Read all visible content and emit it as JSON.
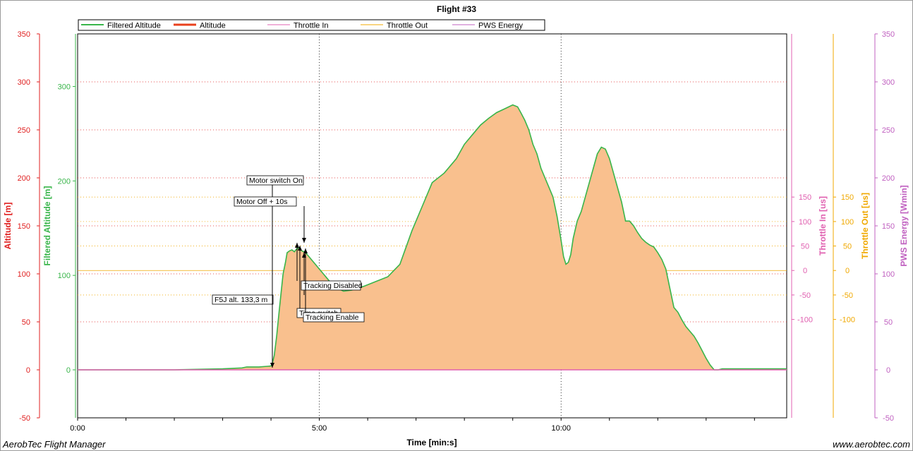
{
  "chart_data": {
    "type": "area",
    "title": "Flight #33",
    "xlabel": "Time [min:s]",
    "x_ticks": [
      "0:00",
      "5:00",
      "10:00"
    ],
    "xlim_seconds": [
      0,
      880
    ],
    "legend": [
      {
        "name": "Filtered Altitude",
        "color": "#39b54a"
      },
      {
        "name": "Altitude",
        "color": "#e8401c"
      },
      {
        "name": "Throttle In",
        "color": "#e060b0"
      },
      {
        "name": "Throttle Out",
        "color": "#f0a800"
      },
      {
        "name": "PWS Energy",
        "color": "#c060c0"
      }
    ],
    "axes": {
      "altitude": {
        "label": "Altitude [m]",
        "ticks": [
          -50,
          0,
          50,
          100,
          150,
          200,
          250,
          300,
          350
        ],
        "range": [
          -50,
          350
        ],
        "color": "#e02020"
      },
      "filtered_altitude": {
        "label": "Filtered Altitude [m]",
        "ticks": [
          0,
          100,
          200,
          300
        ],
        "color": "#39b54a"
      },
      "throttle_in": {
        "label": "Throttle In [us]",
        "ticks": [
          -100,
          -50,
          0,
          50,
          100,
          150
        ],
        "color": "#e060b0"
      },
      "throttle_out": {
        "label": "Throttle Out [us]",
        "ticks": [
          -100,
          -50,
          0,
          50,
          100,
          150
        ],
        "color": "#f0a800"
      },
      "pws_energy": {
        "label": "PWS Energy [Wmin]",
        "ticks": [
          -50,
          0,
          50,
          100,
          150,
          200,
          250,
          300,
          350
        ],
        "color": "#c060c0"
      }
    },
    "filtered_altitude_series": {
      "t_seconds": [
        0,
        60,
        120,
        180,
        204,
        210,
        225,
        240,
        242,
        244,
        247,
        250,
        255,
        258,
        260,
        263,
        266,
        269,
        272,
        275,
        278,
        281,
        284,
        287,
        290,
        295,
        300,
        305,
        310,
        315,
        320,
        330,
        340,
        355,
        370,
        385,
        400,
        415,
        430,
        440,
        455,
        470,
        480,
        490,
        500,
        510,
        520,
        530,
        540,
        546,
        550,
        555,
        560,
        565,
        570,
        575,
        580,
        585,
        590,
        595,
        600,
        603,
        606,
        609,
        612,
        615,
        620,
        625,
        630,
        635,
        640,
        645,
        650,
        655,
        660,
        665,
        670,
        675,
        680,
        685,
        690,
        695,
        700,
        705,
        710,
        715,
        720,
        725,
        730,
        735,
        740,
        745,
        750,
        755,
        760,
        765,
        770,
        775,
        780,
        785,
        790,
        795,
        800,
        805,
        810,
        815,
        820,
        825,
        830,
        835,
        840,
        845,
        850,
        860,
        870,
        880
      ],
      "altitude_m": [
        0,
        0,
        0,
        1,
        2,
        3,
        3,
        4,
        8,
        15,
        35,
        60,
        100,
        112,
        122,
        124,
        125,
        123,
        126,
        127,
        124,
        123,
        121,
        118,
        115,
        110,
        105,
        100,
        95,
        90,
        86,
        82,
        83,
        87,
        92,
        97,
        110,
        145,
        175,
        195,
        205,
        220,
        235,
        245,
        255,
        262,
        268,
        272,
        276,
        274,
        268,
        260,
        250,
        235,
        225,
        210,
        200,
        190,
        180,
        160,
        135,
        118,
        110,
        112,
        120,
        137,
        155,
        165,
        180,
        195,
        210,
        225,
        232,
        230,
        220,
        205,
        190,
        175,
        155,
        155,
        150,
        143,
        137,
        133,
        130,
        128,
        122,
        115,
        105,
        85,
        65,
        60,
        52,
        45,
        40,
        35,
        28,
        20,
        12,
        5,
        0,
        0,
        1,
        1,
        1,
        1,
        1,
        1,
        1,
        1,
        1,
        1,
        1,
        1,
        1,
        1
      ]
    },
    "annotations": [
      {
        "label": "Motor switch On",
        "t_seconds": 242,
        "altitude_m": 5
      },
      {
        "label": "Motor Off + 10s",
        "t_seconds": 274,
        "altitude_m": 124
      },
      {
        "label": "Tracking Disabled",
        "t_seconds": 270,
        "altitude_m": 126
      },
      {
        "label": "F5J alt. 133,3 m",
        "t_seconds": 282,
        "altitude_m": 124
      },
      {
        "label": "Time switch",
        "t_seconds": 278,
        "altitude_m": 124
      },
      {
        "label": "Tracking Enable",
        "t_seconds": 282,
        "altitude_m": 124
      }
    ],
    "grid": true,
    "legend_position": "top-left"
  },
  "footer": {
    "left": "AerobTec Flight Manager",
    "right": "www.aerobtec.com"
  }
}
